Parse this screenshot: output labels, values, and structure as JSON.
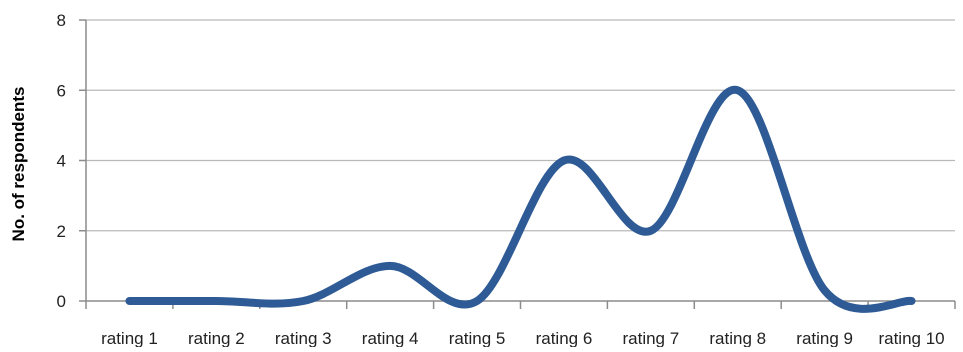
{
  "chart_data": {
    "type": "line",
    "categories": [
      "rating 1",
      "rating 2",
      "rating 3",
      "rating 4",
      "rating 5",
      "rating 6",
      "rating 7",
      "rating 8",
      "rating 9",
      "rating 10"
    ],
    "series": [
      {
        "values": [
          0,
          0,
          0,
          1,
          0,
          4,
          2,
          6,
          0.3,
          0
        ]
      }
    ],
    "title": "",
    "xlabel": "",
    "ylabel": "No. of respondents",
    "ylim": [
      0,
      8
    ],
    "yticks": [
      "0",
      "2",
      "4",
      "6",
      "8"
    ],
    "grid": true,
    "smooth": true,
    "colors": {
      "line": "#2e5b95",
      "grid": "#b9b9b9",
      "axis": "#8c8c8c",
      "text": "#222222"
    }
  }
}
